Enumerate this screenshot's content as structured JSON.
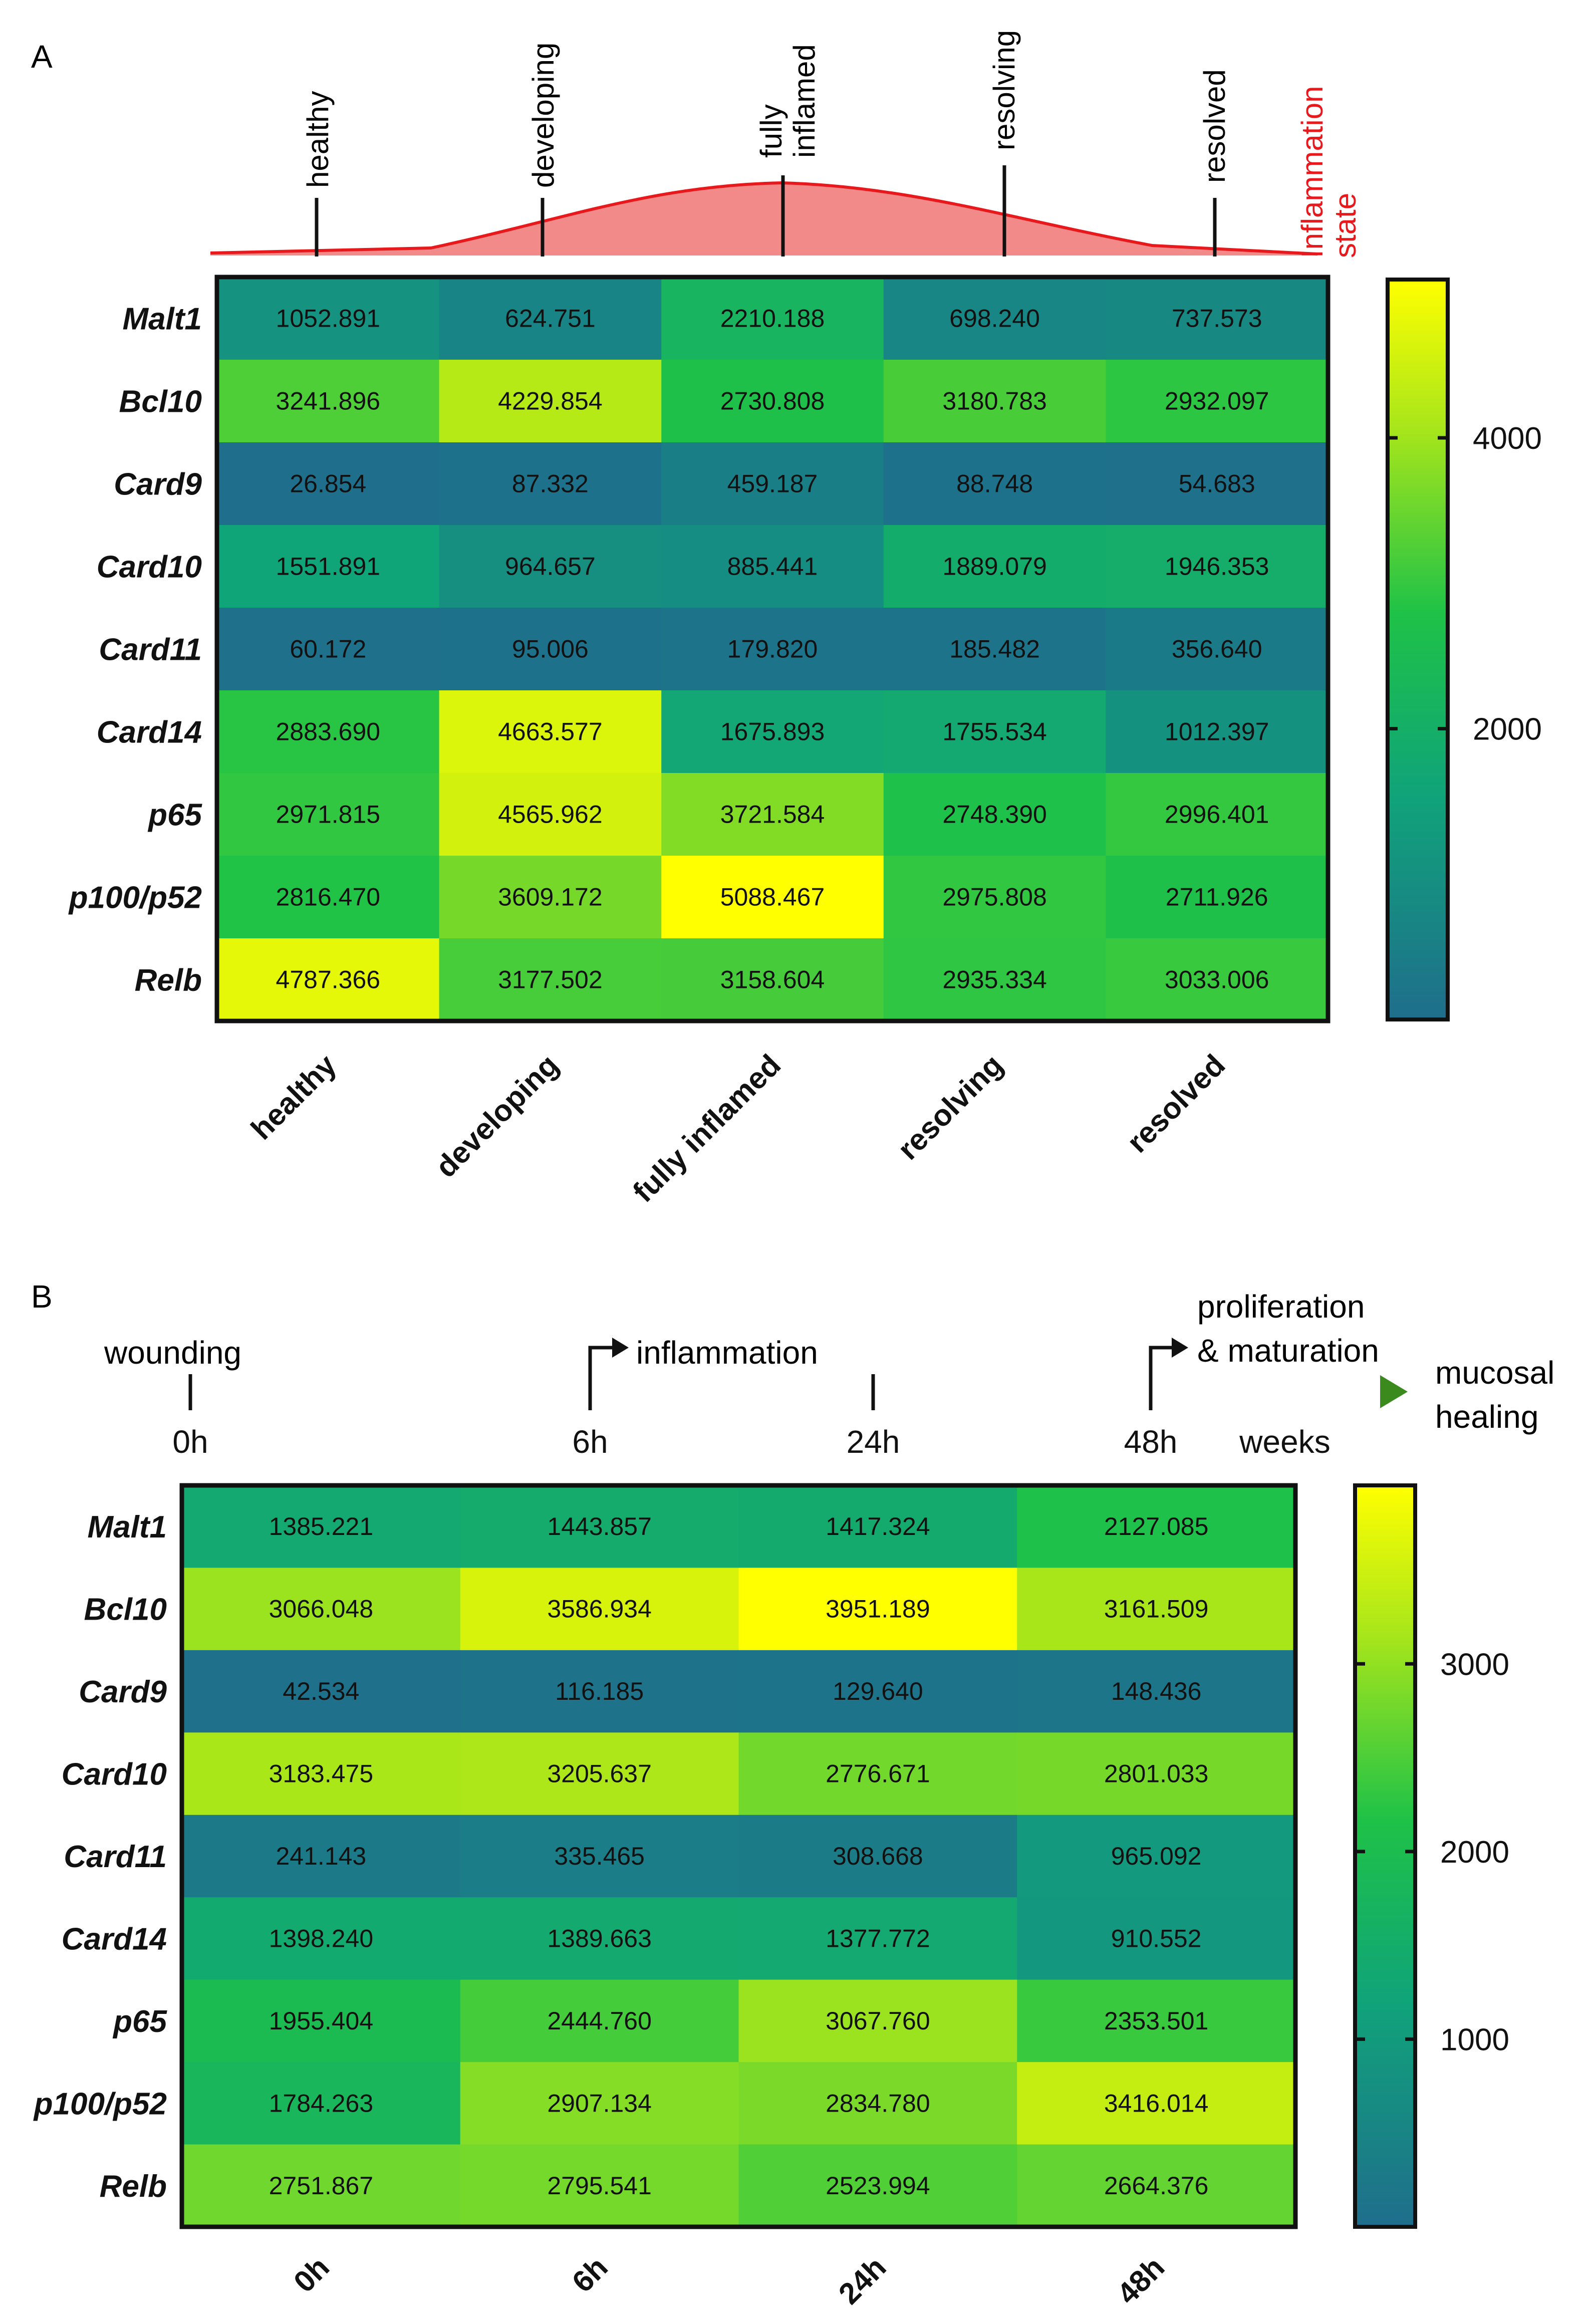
{
  "colors": {
    "curve_fill": "#f28a8a",
    "curve_line": "#e8191c",
    "inflammation_label": "#e8191c",
    "timeline_start": "#ff8c2e",
    "timeline_mid": "#ff2a1a",
    "timeline_end": "#d8001a",
    "healing_arrow": "#3a8a1e",
    "colorscale": [
      "#1f6e8c",
      "#10a37a",
      "#1fc247",
      "#a8e61a",
      "#ffff00"
    ]
  },
  "chart_data": [
    {
      "panel_label": "A",
      "type": "heatmap",
      "title": "",
      "header": {
        "states": [
          "healthy",
          "developing",
          "fully\ninflamed",
          "resolving",
          "resolved"
        ],
        "side_label": "Inflammation\nstate"
      },
      "rows": [
        "Malt1",
        "Bcl10",
        "Card9",
        "Card10",
        "Card11",
        "Card14",
        "p65",
        "p100/p52",
        "Relb"
      ],
      "columns": [
        "healthy",
        "developing",
        "fully inflamed",
        "resolving",
        "resolved"
      ],
      "values": [
        [
          "1052.891",
          "624.751",
          "2210.188",
          "698.240",
          "737.573"
        ],
        [
          "3241.896",
          "4229.854",
          "2730.808",
          "3180.783",
          "2932.097"
        ],
        [
          "26.854",
          "87.332",
          "459.187",
          "88.748",
          "54.683"
        ],
        [
          "1551.891",
          "964.657",
          "885.441",
          "1889.079",
          "1946.353"
        ],
        [
          "60.172",
          "95.006",
          "179.820",
          "185.482",
          "356.640"
        ],
        [
          "2883.690",
          "4663.577",
          "1675.893",
          "1755.534",
          "1012.397"
        ],
        [
          "2971.815",
          "4565.962",
          "3721.584",
          "2748.390",
          "2996.401"
        ],
        [
          "2816.470",
          "3609.172",
          "5088.467",
          "2975.808",
          "2711.926"
        ],
        [
          "4787.366",
          "3177.502",
          "3158.604",
          "2935.334",
          "3033.006"
        ]
      ],
      "colorbar": {
        "range": [
          0,
          5088.467
        ],
        "ticks": [
          "4000",
          "2000"
        ],
        "tick_values": [
          4000,
          2000
        ]
      }
    },
    {
      "panel_label": "B",
      "type": "heatmap",
      "title": "",
      "timeline": {
        "start_label": "wounding",
        "phase_inflammation": "inflammation",
        "phase_proliferation_line1": "proliferation",
        "phase_proliferation_line2": "& maturation",
        "end_label_line1": "mucosal",
        "end_label_line2": "healing",
        "ticks": [
          "0h",
          "6h",
          "24h",
          "48h",
          "weeks"
        ]
      },
      "rows": [
        "Malt1",
        "Bcl10",
        "Card9",
        "Card10",
        "Card11",
        "Card14",
        "p65",
        "p100/p52",
        "Relb"
      ],
      "columns": [
        "0h",
        "6h",
        "24h",
        "48h"
      ],
      "values": [
        [
          "1385.221",
          "1443.857",
          "1417.324",
          "2127.085"
        ],
        [
          "3066.048",
          "3586.934",
          "3951.189",
          "3161.509"
        ],
        [
          "42.534",
          "116.185",
          "129.640",
          "148.436"
        ],
        [
          "3183.475",
          "3205.637",
          "2776.671",
          "2801.033"
        ],
        [
          "241.143",
          "335.465",
          "308.668",
          "965.092"
        ],
        [
          "1398.240",
          "1389.663",
          "1377.772",
          "910.552"
        ],
        [
          "1955.404",
          "2444.760",
          "3067.760",
          "2353.501"
        ],
        [
          "1784.263",
          "2907.134",
          "2834.780",
          "3416.014"
        ],
        [
          "2751.867",
          "2795.541",
          "2523.994",
          "2664.376"
        ]
      ],
      "colorbar": {
        "range": [
          0,
          3951.189
        ],
        "ticks": [
          "3000",
          "2000",
          "1000"
        ],
        "tick_values": [
          3000,
          2000,
          1000
        ]
      }
    }
  ]
}
